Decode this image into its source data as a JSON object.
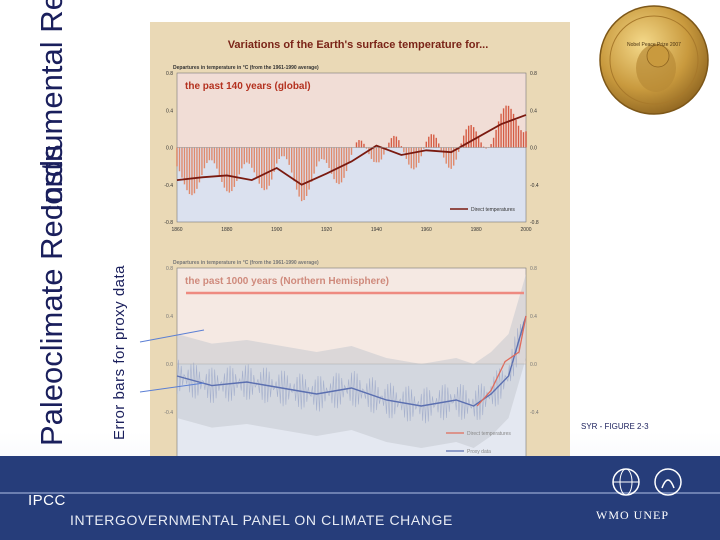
{
  "side_labels": {
    "instrumental": "Instrumental Records",
    "paleoclimate": "Paleoclimate Records",
    "error_bars": "Error bars for proxy data"
  },
  "figure": {
    "main_title": "Variations of the Earth's surface temperature for...",
    "figure_id": "SYR - FIGURE 2-3"
  },
  "footer": {
    "org_short": "IPCC",
    "org_full": "INTERGOVERNMENTAL PANEL ON CLIMATE CHANGE",
    "partners": "WMO  UNEP"
  },
  "medal_text": "Nobel Peace Prize 2007",
  "chart_data": [
    {
      "type": "bar",
      "title": "the past 140 years (global)",
      "ylabel": "Departures in temperature in °C (from the 1961-1990 average)",
      "xlim": [
        1860,
        2000
      ],
      "ylim": [
        -0.8,
        0.8
      ],
      "x_ticks": [
        1860,
        1880,
        1900,
        1920,
        1940,
        1960,
        1980,
        2000
      ],
      "y_ticks": [
        "0.8",
        "0.4",
        "0.0",
        "-0.4",
        "-0.8"
      ],
      "series": [
        {
          "name": "Direct temperatures",
          "kind": "annual bars with smoothed line",
          "x": [
            1860,
            1870,
            1880,
            1890,
            1900,
            1910,
            1920,
            1930,
            1940,
            1950,
            1960,
            1970,
            1980,
            1990,
            2000
          ],
          "values": [
            -0.35,
            -0.32,
            -0.3,
            -0.35,
            -0.22,
            -0.4,
            -0.28,
            -0.15,
            0.02,
            -0.08,
            -0.03,
            -0.05,
            0.1,
            0.25,
            0.35
          ]
        }
      ],
      "legend": [
        "Direct temperatures"
      ]
    },
    {
      "type": "line",
      "title": "the past 1000 years (Northern Hemisphere)",
      "ylabel": "Departures in temperature in °C (from the 1961-1990 average)",
      "xlim": [
        1000,
        2000
      ],
      "ylim": [
        -0.8,
        0.8
      ],
      "x_ticks": [
        1000,
        1200,
        1400,
        1600,
        1800,
        2000
      ],
      "y_ticks": [
        "0.8",
        "0.4",
        "0.0",
        "-0.4",
        "-0.8"
      ],
      "series": [
        {
          "name": "Proxy data",
          "x": [
            1000,
            1100,
            1200,
            1300,
            1400,
            1500,
            1600,
            1700,
            1800,
            1850,
            1900,
            1950,
            2000
          ],
          "values": [
            -0.1,
            -0.18,
            -0.15,
            -0.2,
            -0.25,
            -0.2,
            -0.3,
            -0.35,
            -0.3,
            -0.35,
            -0.25,
            -0.1,
            0.4
          ]
        },
        {
          "name": "Direct temperatures",
          "x": [
            1860,
            1900,
            1940,
            1980,
            2000
          ],
          "values": [
            -0.35,
            -0.22,
            0.02,
            0.1,
            0.4
          ]
        }
      ],
      "legend": [
        "Direct temperatures",
        "Proxy data"
      ]
    }
  ]
}
